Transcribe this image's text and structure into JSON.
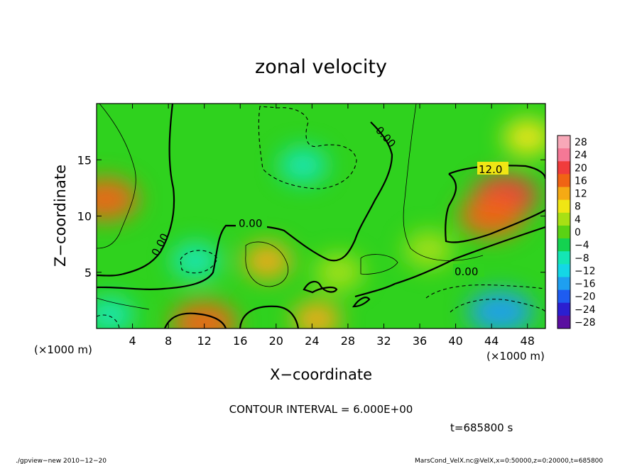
{
  "chart_data": {
    "type": "heatmap",
    "title": "zonal velocity",
    "xlabel": "X−coordinate",
    "ylabel": "Z−coordinate",
    "x_unit_label": "(×1000 m)",
    "y_unit_label": "(×1000 m)",
    "xlim": [
      0,
      50
    ],
    "ylim": [
      0,
      20
    ],
    "x_ticks": [
      4,
      8,
      12,
      16,
      20,
      24,
      28,
      32,
      36,
      40,
      44,
      48
    ],
    "y_ticks": [
      5,
      10,
      15
    ],
    "colorbar_ticks": [
      28,
      24,
      20,
      16,
      12,
      8,
      4,
      0,
      -4,
      -8,
      -12,
      -16,
      -20,
      -24,
      -28
    ],
    "colorbar_display": [
      "28",
      "24",
      "20",
      "16",
      "12",
      "8",
      "4",
      "0",
      "−4",
      "−8",
      "−12",
      "−16",
      "−20",
      "−24",
      "−28"
    ],
    "contour_labels": [
      "0.00",
      "0.00",
      "0.00",
      "0.00",
      "12.0"
    ],
    "contour_interval_text": "CONTOUR INTERVAL = 6.000E+00",
    "time_text": "t=685800  s",
    "features": [
      {
        "x": 1.0,
        "z": 11.5,
        "value": 14
      },
      {
        "x": 45.5,
        "z": 11.8,
        "value": 19
      },
      {
        "x": 44.0,
        "z": 10.0,
        "value": 15
      },
      {
        "x": 19.0,
        "z": 6.0,
        "value": 10
      },
      {
        "x": 12.0,
        "z": 0.5,
        "value": 16
      },
      {
        "x": 24.5,
        "z": 0.8,
        "value": 10
      },
      {
        "x": 23.0,
        "z": 14.5,
        "value": -7
      },
      {
        "x": 11.0,
        "z": 6.0,
        "value": -8
      },
      {
        "x": 45.0,
        "z": 1.5,
        "value": -15
      },
      {
        "x": 1.5,
        "z": 1.2,
        "value": -10
      },
      {
        "x": 48.0,
        "z": 17.0,
        "value": 8
      },
      {
        "x": 27.0,
        "z": 5.0,
        "value": 4
      },
      {
        "x": 37.0,
        "z": 7.0,
        "value": 4
      }
    ]
  },
  "footer": {
    "left": "./gpview−new   2010−12−20",
    "right": "MarsCond_VelX.nc@VelX,x=0:50000,z=0:20000,t=685800"
  },
  "colors": {
    "colormap": [
      "#5a0ea0",
      "#2b1fd0",
      "#1e5cf0",
      "#1e9ff0",
      "#14d7e6",
      "#14e6b4",
      "#14d250",
      "#5ad214",
      "#a8e014",
      "#f0e614",
      "#f5aa14",
      "#f06414",
      "#f03c3c",
      "#f57896",
      "#f8a8b8"
    ]
  }
}
